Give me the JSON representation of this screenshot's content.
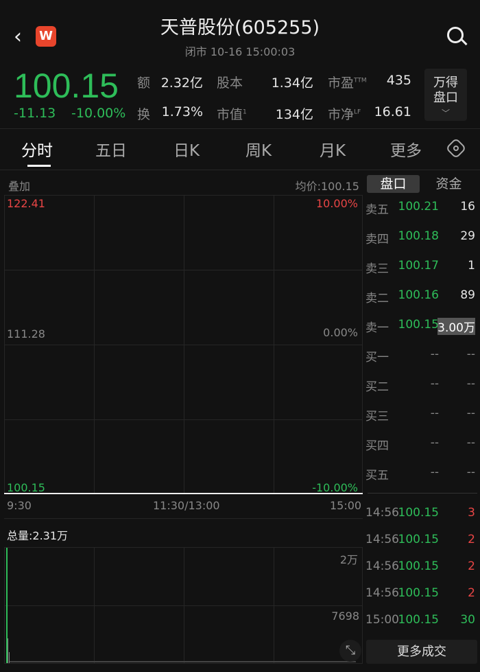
{
  "header": {
    "title": "天普股份(605255)",
    "status": "闭市 10-16 15:00:03",
    "logo_letter": "W"
  },
  "quote": {
    "price": "100.15",
    "change": "-11.13",
    "change_pct": "-10.00%",
    "stats": [
      {
        "label": "额",
        "value": "2.32亿"
      },
      {
        "label": "股本",
        "value": "1.34亿"
      },
      {
        "label": "市盈",
        "sup": "TTM",
        "value": "435"
      },
      {
        "label": "换",
        "value": "1.73%"
      },
      {
        "label": "市值",
        "sup": "1",
        "value": "134亿"
      },
      {
        "label": "市净",
        "sup": "LF",
        "value": "16.61"
      }
    ],
    "wind_button": [
      "万得",
      "盘口"
    ]
  },
  "tabs": [
    "分时",
    "五日",
    "日K",
    "周K",
    "月K",
    "更多"
  ],
  "chart": {
    "overlay_label": "叠加",
    "avg_price": "均价:100.15",
    "y_high": "122.41",
    "y_mid": "111.28",
    "y_low": "100.15",
    "pct_high": "10.00%",
    "pct_mid": "0.00%",
    "pct_low": "-10.00%",
    "x_labels": [
      "9:30",
      "11:30/13:00",
      "15:00"
    ],
    "price_line_value": 100.15,
    "volume_total": "总量:2.31万",
    "vol_high": "2万",
    "vol_mid": "7698"
  },
  "panel_tabs": [
    "盘口",
    "资金"
  ],
  "order_book": [
    {
      "label": "卖五",
      "price": "100.21",
      "vol": "16"
    },
    {
      "label": "卖四",
      "price": "100.18",
      "vol": "29"
    },
    {
      "label": "卖三",
      "price": "100.17",
      "vol": "1"
    },
    {
      "label": "卖二",
      "price": "100.16",
      "vol": "89"
    },
    {
      "label": "卖一",
      "price": "100.15",
      "vol": "3.00万"
    },
    {
      "label": "买一",
      "price": "--",
      "vol": "--"
    },
    {
      "label": "买二",
      "price": "--",
      "vol": "--"
    },
    {
      "label": "买三",
      "price": "--",
      "vol": "--"
    },
    {
      "label": "买四",
      "price": "--",
      "vol": "--"
    },
    {
      "label": "买五",
      "price": "--",
      "vol": "--"
    }
  ],
  "trades": [
    {
      "time": "14:56",
      "price": "100.15",
      "vol": "3",
      "side": "buy"
    },
    {
      "time": "14:56",
      "price": "100.15",
      "vol": "2",
      "side": "buy"
    },
    {
      "time": "14:56",
      "price": "100.15",
      "vol": "2",
      "side": "buy"
    },
    {
      "time": "14:56",
      "price": "100.15",
      "vol": "2",
      "side": "buy"
    },
    {
      "time": "15:00",
      "price": "100.15",
      "vol": "30",
      "side": "sell"
    }
  ],
  "more_trades": "更多成交",
  "colors": {
    "up": "#e84545",
    "down": "#2ebd59",
    "bg": "#121212"
  }
}
